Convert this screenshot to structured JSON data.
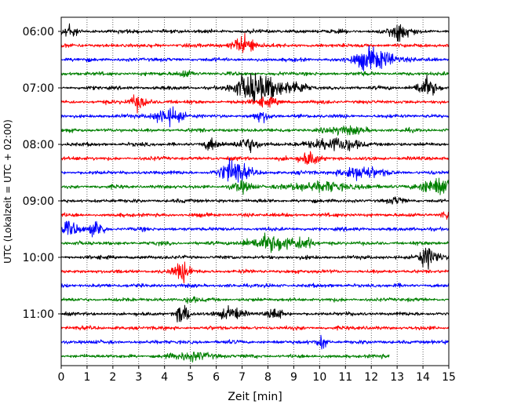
{
  "chart_data": {
    "type": "line",
    "subtype": "helicorder",
    "title": "",
    "xlabel": "Zeit  [min]",
    "ylabel": "UTC (Lokalzeit = UTC + 02:00)",
    "xlim": [
      0,
      15
    ],
    "x_ticks": [
      0,
      1,
      2,
      3,
      4,
      5,
      6,
      7,
      8,
      9,
      10,
      11,
      12,
      13,
      14,
      15
    ],
    "y_ticks": [
      "06:00",
      "07:00",
      "08:00",
      "09:00",
      "10:00",
      "11:00"
    ],
    "grid": "vertical dotted",
    "trace_colors": [
      "#000000",
      "#ff0000",
      "#0000ff",
      "#008000"
    ],
    "traces": [
      {
        "start": "06:00",
        "color": "#000000",
        "end_min": 15,
        "events": [
          [
            0.3,
            0.4,
            7
          ],
          [
            13.1,
            0.6,
            8
          ]
        ]
      },
      {
        "start": "06:15",
        "color": "#ff0000",
        "end_min": 15,
        "events": [
          [
            7.1,
            0.6,
            9
          ]
        ]
      },
      {
        "start": "06:30",
        "color": "#0000ff",
        "end_min": 15,
        "events": [
          [
            12.2,
            1.2,
            8
          ],
          [
            11.8,
            0.6,
            4
          ]
        ]
      },
      {
        "start": "06:45",
        "color": "#008000",
        "end_min": 15,
        "events": [
          [
            4.8,
            0.5,
            3
          ]
        ]
      },
      {
        "start": "07:00",
        "color": "#000000",
        "end_min": 15,
        "events": [
          [
            7.8,
            1.2,
            11
          ],
          [
            7.1,
            0.8,
            7
          ],
          [
            9.1,
            0.6,
            5
          ],
          [
            14.1,
            0.6,
            9
          ]
        ]
      },
      {
        "start": "07:15",
        "color": "#ff0000",
        "end_min": 15,
        "events": [
          [
            3.0,
            0.5,
            7
          ],
          [
            7.9,
            0.6,
            4
          ]
        ]
      },
      {
        "start": "07:30",
        "color": "#0000ff",
        "end_min": 15,
        "events": [
          [
            4.1,
            0.8,
            8
          ],
          [
            7.8,
            0.5,
            4
          ]
        ]
      },
      {
        "start": "07:45",
        "color": "#008000",
        "end_min": 15,
        "events": [
          [
            11.0,
            1.0,
            4
          ]
        ]
      },
      {
        "start": "08:00",
        "color": "#000000",
        "end_min": 15,
        "events": [
          [
            7.2,
            0.6,
            7
          ],
          [
            10.6,
            1.4,
            6
          ],
          [
            5.8,
            0.4,
            5
          ]
        ]
      },
      {
        "start": "08:15",
        "color": "#ff0000",
        "end_min": 15,
        "events": [
          [
            9.6,
            0.5,
            8
          ]
        ]
      },
      {
        "start": "08:30",
        "color": "#0000ff",
        "end_min": 15,
        "events": [
          [
            6.7,
            0.8,
            12
          ],
          [
            11.6,
            1.2,
            6
          ]
        ]
      },
      {
        "start": "08:45",
        "color": "#008000",
        "end_min": 15,
        "events": [
          [
            14.6,
            1.0,
            9
          ],
          [
            10.0,
            2.0,
            4
          ],
          [
            7.0,
            0.6,
            4
          ]
        ]
      },
      {
        "start": "09:00",
        "color": "#000000",
        "end_min": 15,
        "events": [
          [
            13.0,
            0.4,
            3
          ]
        ]
      },
      {
        "start": "09:15",
        "color": "#ff0000",
        "end_min": 15,
        "events": [
          [
            14.9,
            0.3,
            5
          ]
        ]
      },
      {
        "start": "09:30",
        "color": "#0000ff",
        "end_min": 15,
        "events": [
          [
            0.3,
            0.6,
            7
          ],
          [
            1.4,
            0.4,
            8
          ]
        ]
      },
      {
        "start": "09:45",
        "color": "#008000",
        "end_min": 15,
        "events": [
          [
            8.1,
            1.2,
            8
          ],
          [
            9.4,
            0.6,
            5
          ]
        ]
      },
      {
        "start": "10:00",
        "color": "#000000",
        "end_min": 15,
        "events": [
          [
            14.2,
            0.6,
            9
          ]
        ]
      },
      {
        "start": "10:15",
        "color": "#ff0000",
        "end_min": 15,
        "events": [
          [
            4.7,
            0.5,
            9
          ]
        ]
      },
      {
        "start": "10:30",
        "color": "#0000ff",
        "end_min": 15,
        "events": []
      },
      {
        "start": "10:45",
        "color": "#008000",
        "end_min": 15,
        "events": [
          [
            5.0,
            0.3,
            3
          ]
        ]
      },
      {
        "start": "11:00",
        "color": "#000000",
        "end_min": 15,
        "events": [
          [
            4.7,
            0.4,
            9
          ],
          [
            6.6,
            0.8,
            5
          ],
          [
            8.3,
            0.4,
            5
          ]
        ]
      },
      {
        "start": "11:15",
        "color": "#ff0000",
        "end_min": 15,
        "events": []
      },
      {
        "start": "11:30",
        "color": "#0000ff",
        "end_min": 15,
        "events": [
          [
            10.1,
            0.3,
            6
          ]
        ]
      },
      {
        "start": "11:45",
        "color": "#008000",
        "end_min": 12.7,
        "events": [
          [
            5.1,
            1.0,
            4
          ]
        ]
      }
    ]
  }
}
